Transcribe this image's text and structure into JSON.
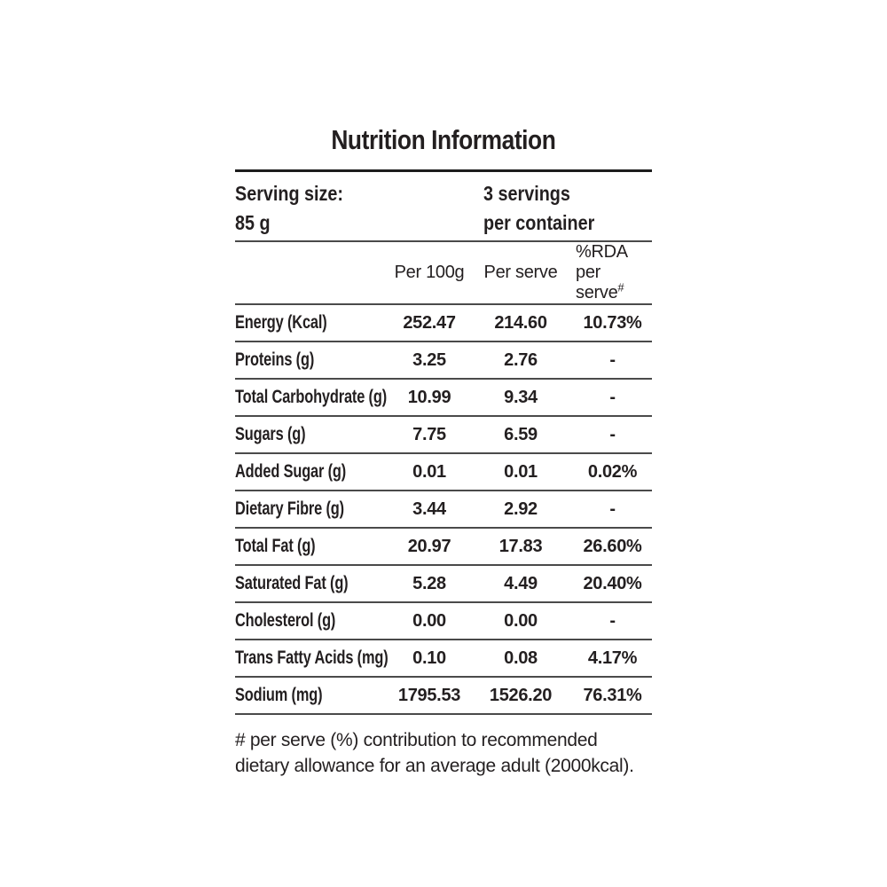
{
  "title": "Nutrition Information",
  "serving": {
    "size_label": "Serving size:",
    "size_value": "85 g",
    "count_line1": "3 servings",
    "count_line2": "per container"
  },
  "header": {
    "per_100g": "Per 100g",
    "per_serve": "Per serve",
    "rda_line1": "%RDA",
    "rda_line2": "per serve",
    "rda_sup": "#"
  },
  "rows": [
    {
      "label": "Energy (Kcal)",
      "per_100g": "252.47",
      "per_serve": "214.60",
      "rda_per_serve": "10.73%"
    },
    {
      "label": "Proteins (g)",
      "per_100g": "3.25",
      "per_serve": "2.76",
      "rda_per_serve": "-"
    },
    {
      "label": "Total Carbohydrate (g)",
      "per_100g": "10.99",
      "per_serve": "9.34",
      "rda_per_serve": "-"
    },
    {
      "label": "Sugars (g)",
      "per_100g": "7.75",
      "per_serve": "6.59",
      "rda_per_serve": "-"
    },
    {
      "label": "Added Sugar (g)",
      "per_100g": "0.01",
      "per_serve": "0.01",
      "rda_per_serve": "0.02%"
    },
    {
      "label": "Dietary Fibre (g)",
      "per_100g": "3.44",
      "per_serve": "2.92",
      "rda_per_serve": "-"
    },
    {
      "label": "Total Fat (g)",
      "per_100g": "20.97",
      "per_serve": "17.83",
      "rda_per_serve": "26.60%"
    },
    {
      "label": "Saturated Fat (g)",
      "per_100g": "5.28",
      "per_serve": "4.49",
      "rda_per_serve": "20.40%"
    },
    {
      "label": "Cholesterol (g)",
      "per_100g": "0.00",
      "per_serve": "0.00",
      "rda_per_serve": "-"
    },
    {
      "label": "Trans Fatty Acids (mg)",
      "per_100g": "0.10",
      "per_serve": "0.08",
      "rda_per_serve": "4.17%"
    },
    {
      "label": "Sodium (mg)",
      "per_100g": "1795.53",
      "per_serve": "1526.20",
      "rda_per_serve": "76.31%"
    }
  ],
  "footnote": {
    "line1": "# per serve (%) contribution to recommended",
    "line2": "dietary allowance for an average adult (2000kcal)."
  },
  "colors": {
    "text": "#231f20",
    "top_rule": "#1d1d1d",
    "divider": "#4a4a4a",
    "background": "#ffffff"
  }
}
